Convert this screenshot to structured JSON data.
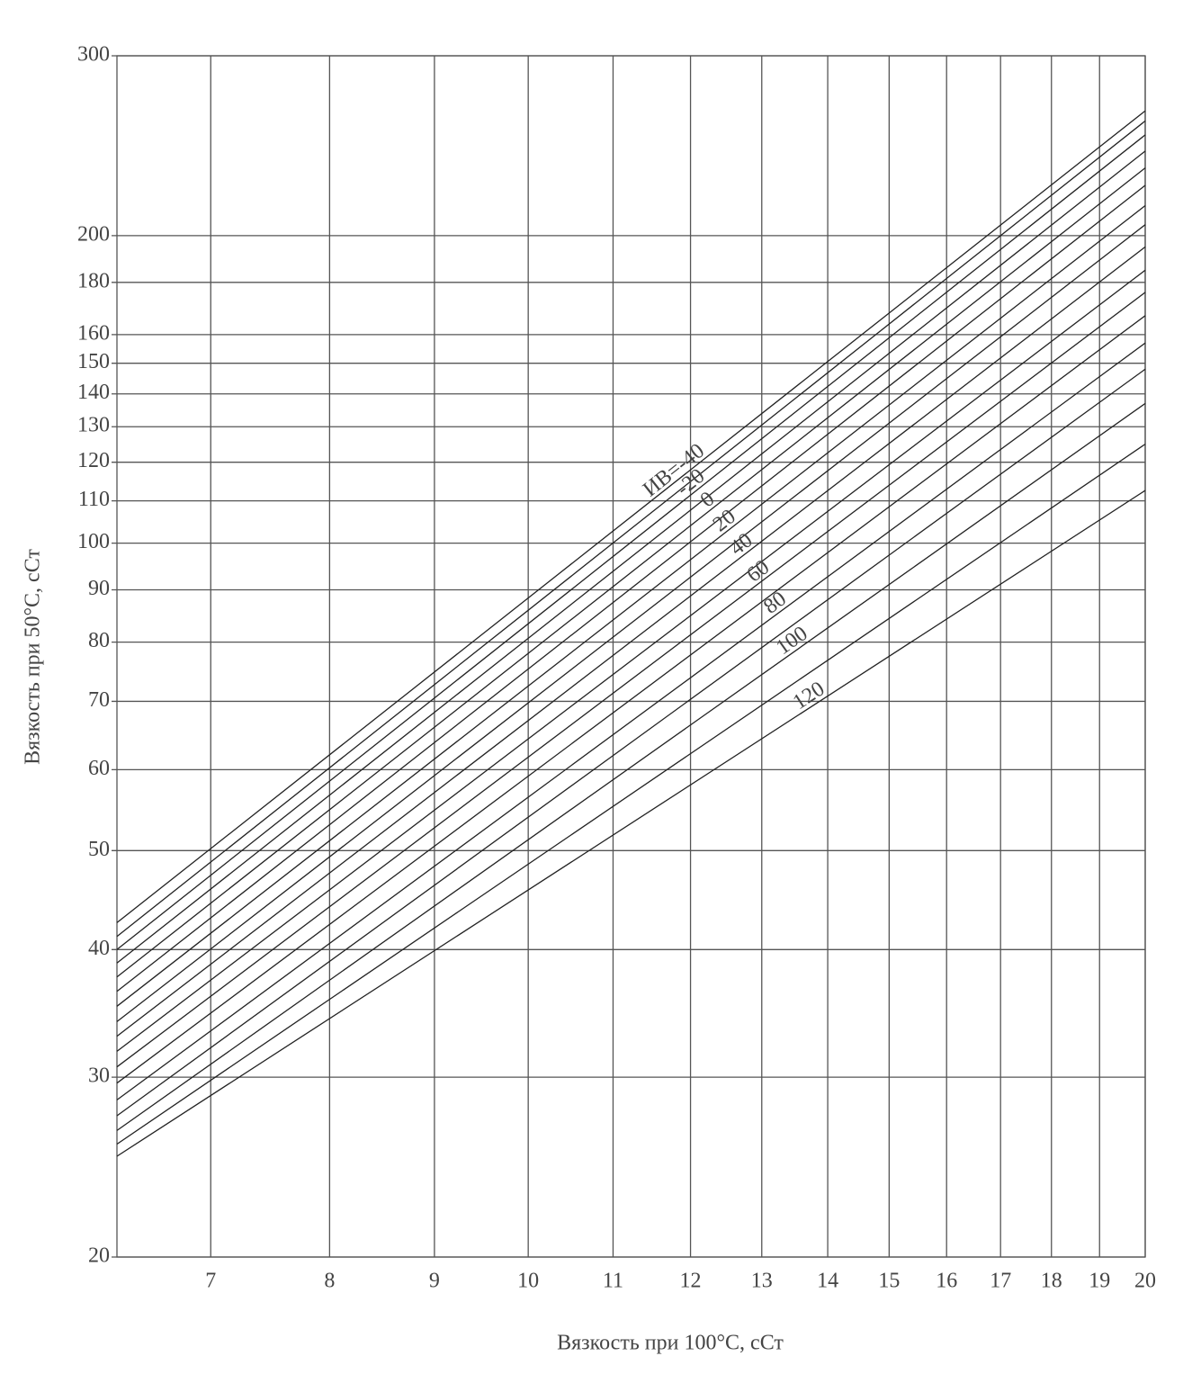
{
  "chart_data": {
    "type": "line",
    "x_label": "Вязкость при 100°С, сСт",
    "y_label": "Вязкость при 50°С, сСт",
    "log_x": true,
    "log_y": true,
    "grid": true,
    "color": "#222222",
    "xlim": [
      6.3,
      20
    ],
    "ylim": [
      20,
      300
    ],
    "xticks": [
      7,
      8,
      9,
      10,
      11,
      12,
      13,
      14,
      15,
      16,
      17,
      18,
      19,
      20
    ],
    "yticks": [
      20,
      30,
      40,
      50,
      60,
      70,
      80,
      90,
      100,
      110,
      120,
      130,
      140,
      150,
      160,
      180,
      200,
      300
    ],
    "x": [
      6.3,
      20
    ],
    "series": [
      {
        "name": "ИВ=-40",
        "values": [
          42.5,
          265
        ]
      },
      {
        "values": [
          41.2,
          259
        ]
      },
      {
        "name": "-20",
        "values": [
          40.0,
          251
        ]
      },
      {
        "values": [
          38.8,
          242
        ]
      },
      {
        "name": "0",
        "values": [
          37.6,
          233
        ]
      },
      {
        "values": [
          36.4,
          224
        ]
      },
      {
        "name": "20",
        "values": [
          35.2,
          214
        ]
      },
      {
        "values": [
          34.0,
          205
        ]
      },
      {
        "name": "40",
        "values": [
          32.9,
          195
        ]
      },
      {
        "values": [
          31.8,
          185
        ]
      },
      {
        "name": "60",
        "values": [
          30.7,
          176
        ]
      },
      {
        "values": [
          29.6,
          167
        ]
      },
      {
        "name": "80",
        "values": [
          28.5,
          157
        ]
      },
      {
        "values": [
          27.5,
          148
        ]
      },
      {
        "name": "100",
        "values": [
          26.6,
          137
        ]
      },
      {
        "values": [
          25.8,
          125
        ]
      },
      {
        "name": "120",
        "values": [
          25.1,
          112.6
        ]
      }
    ]
  }
}
